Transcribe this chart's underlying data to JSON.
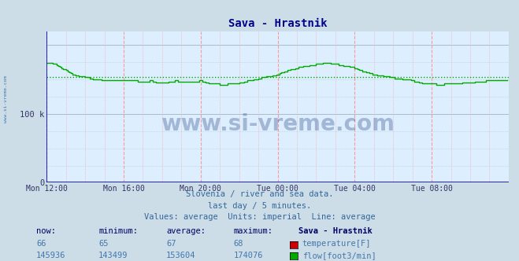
{
  "title": "Sava - Hrastnik",
  "background_color": "#ccdde8",
  "plot_bg_color": "#ddeeff",
  "x_tick_labels": [
    "Mon 12:00",
    "Mon 16:00",
    "Mon 20:00",
    "Tue 00:00",
    "Tue 04:00",
    "Tue 08:00"
  ],
  "x_tick_positions": [
    0,
    48,
    96,
    144,
    192,
    240
  ],
  "y_ticks": [
    0,
    100000
  ],
  "y_tick_labels": [
    "0",
    "100 k"
  ],
  "ylim": [
    0,
    220000
  ],
  "xlim": [
    0,
    288
  ],
  "subtitle_lines": [
    "Slovenia / river and sea data.",
    "last day / 5 minutes.",
    "Values: average  Units: imperial  Line: average"
  ],
  "watermark": "www.si-vreme.com",
  "flow_color": "#00aa00",
  "temp_color": "#cc0000",
  "avg_flow": 153604,
  "temp_now": 66,
  "temp_min": 65,
  "temp_avg": 67,
  "temp_max": 68,
  "flow_now": 145936,
  "flow_min": 143499,
  "flow_avg": 153604,
  "flow_max": 174076,
  "station": "Sava - Hrastnik",
  "axis_color": "#0000cc",
  "tick_color": "#333366",
  "grid_v_color": "#ff9999",
  "grid_h_color": "#aabbcc",
  "title_color": "#000088"
}
